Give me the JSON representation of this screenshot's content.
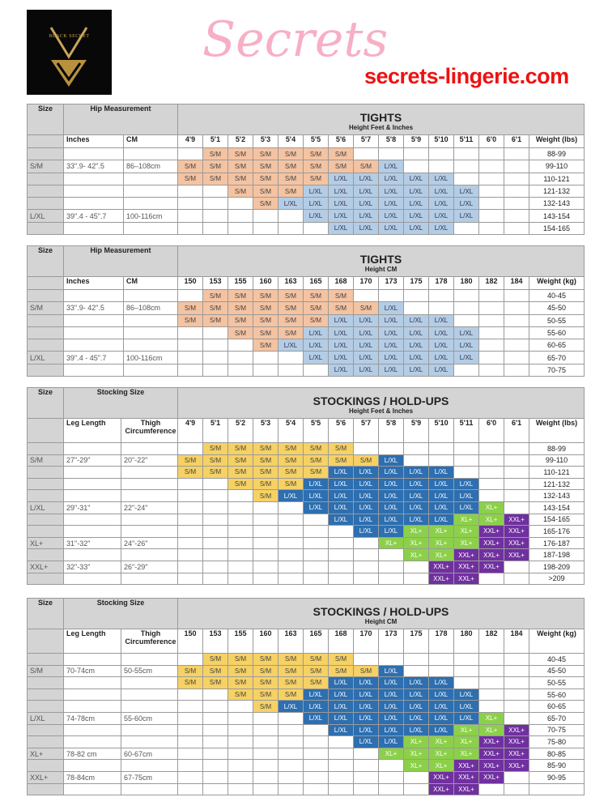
{
  "logo": {
    "text": "BLACK SECRET"
  },
  "colors": {
    "header": "#d4d4d4",
    "tights_sm": "#f4c3a2",
    "tights_lxl": "#b4cde6",
    "stock_sm": "#f6d164",
    "stock_lxl": "#2d6fb0",
    "stock_xl": "#8cd04a",
    "stock_xxl": "#7030a0"
  },
  "tables": [
    {
      "title": "TIGHTS",
      "subtitle": "Height Feet & Inches",
      "size_header": "Size",
      "group_header": "Hip Measurement",
      "col1": "Inches",
      "col2": "CM",
      "heights": [
        "4'9",
        "5'1",
        "5'2",
        "5'3",
        "5'4",
        "5'5",
        "5'6",
        "5'7",
        "5'8",
        "5'9",
        "5'10",
        "5'11",
        "6'0",
        "6'1"
      ],
      "weight_header": "Weight (lbs)",
      "palette": "tights",
      "rows": [
        {
          "size": "",
          "m1": "",
          "m2": "",
          "weight": "88-99",
          "cells": [
            "",
            "S/M",
            "S/M",
            "S/M",
            "S/M",
            "S/M",
            "S/M",
            "",
            "",
            "",
            "",
            "",
            "",
            ""
          ]
        },
        {
          "size": "S/M",
          "m1": "33\".9- 42\".5",
          "m2": "86–108cm",
          "weight": "99-110",
          "cells": [
            "S/M",
            "S/M",
            "S/M",
            "S/M",
            "S/M",
            "S/M",
            "S/M",
            "S/M",
            "L/XL",
            "",
            "",
            "",
            "",
            ""
          ]
        },
        {
          "size": "",
          "m1": "",
          "m2": "",
          "weight": "110-121",
          "cells": [
            "S/M",
            "S/M",
            "S/M",
            "S/M",
            "S/M",
            "S/M",
            "L/XL",
            "L/XL",
            "L/XL",
            "L/XL",
            "L/XL",
            "",
            "",
            ""
          ]
        },
        {
          "size": "",
          "m1": "",
          "m2": "",
          "weight": "121-132",
          "cells": [
            "",
            "",
            "S/M",
            "S/M",
            "S/M",
            "L/XL",
            "L/XL",
            "L/XL",
            "L/XL",
            "L/XL",
            "L/XL",
            "L/XL",
            "",
            ""
          ]
        },
        {
          "size": "",
          "m1": "",
          "m2": "",
          "weight": "132-143",
          "cells": [
            "",
            "",
            "",
            "S/M",
            "L/XL",
            "L/XL",
            "L/XL",
            "L/XL",
            "L/XL",
            "L/XL",
            "L/XL",
            "L/XL",
            "",
            ""
          ]
        },
        {
          "size": "L/XL",
          "m1": "39\".4 - 45\".7",
          "m2": "100-116cm",
          "weight": "143-154",
          "cells": [
            "",
            "",
            "",
            "",
            "",
            "L/XL",
            "L/XL",
            "L/XL",
            "L/XL",
            "L/XL",
            "L/XL",
            "L/XL",
            "",
            ""
          ]
        },
        {
          "size": "",
          "m1": "",
          "m2": "",
          "weight": "154-165",
          "cells": [
            "",
            "",
            "",
            "",
            "",
            "",
            "L/XL",
            "L/XL",
            "L/XL",
            "L/XL",
            "L/XL",
            "",
            "",
            ""
          ]
        }
      ]
    },
    {
      "title": "TIGHTS",
      "subtitle": "Height CM",
      "size_header": "Size",
      "group_header": "Hip Measurement",
      "col1": "Inches",
      "col2": "CM",
      "heights": [
        "150",
        "153",
        "155",
        "160",
        "163",
        "165",
        "168",
        "170",
        "173",
        "175",
        "178",
        "180",
        "182",
        "184"
      ],
      "weight_header": "Weight (kg)",
      "palette": "tights",
      "rows": [
        {
          "size": "",
          "m1": "",
          "m2": "",
          "weight": "40-45",
          "cells": [
            "",
            "S/M",
            "S/M",
            "S/M",
            "S/M",
            "S/M",
            "S/M",
            "",
            "",
            "",
            "",
            "",
            "",
            ""
          ]
        },
        {
          "size": "S/M",
          "m1": "33\".9- 42\".5",
          "m2": "86–108cm",
          "weight": "45-50",
          "cells": [
            "S/M",
            "S/M",
            "S/M",
            "S/M",
            "S/M",
            "S/M",
            "S/M",
            "S/M",
            "L/XL",
            "",
            "",
            "",
            "",
            ""
          ]
        },
        {
          "size": "",
          "m1": "",
          "m2": "",
          "weight": "50-55",
          "cells": [
            "S/M",
            "S/M",
            "S/M",
            "S/M",
            "S/M",
            "S/M",
            "L/XL",
            "L/XL",
            "L/XL",
            "L/XL",
            "L/XL",
            "",
            "",
            ""
          ]
        },
        {
          "size": "",
          "m1": "",
          "m2": "",
          "weight": "55-60",
          "cells": [
            "",
            "",
            "S/M",
            "S/M",
            "S/M",
            "L/XL",
            "L/XL",
            "L/XL",
            "L/XL",
            "L/XL",
            "L/XL",
            "L/XL",
            "",
            ""
          ]
        },
        {
          "size": "",
          "m1": "",
          "m2": "",
          "weight": "60-65",
          "cells": [
            "",
            "",
            "",
            "S/M",
            "L/XL",
            "L/XL",
            "L/XL",
            "L/XL",
            "L/XL",
            "L/XL",
            "L/XL",
            "L/XL",
            "",
            ""
          ]
        },
        {
          "size": "L/XL",
          "m1": "39\".4 - 45\".7",
          "m2": "100-116cm",
          "weight": "65-70",
          "cells": [
            "",
            "",
            "",
            "",
            "",
            "L/XL",
            "L/XL",
            "L/XL",
            "L/XL",
            "L/XL",
            "L/XL",
            "L/XL",
            "",
            ""
          ]
        },
        {
          "size": "",
          "m1": "",
          "m2": "",
          "weight": "70-75",
          "cells": [
            "",
            "",
            "",
            "",
            "",
            "",
            "L/XL",
            "L/XL",
            "L/XL",
            "L/XL",
            "L/XL",
            "",
            "",
            ""
          ]
        }
      ]
    },
    {
      "title": "STOCKINGS / HOLD-UPS",
      "subtitle": "Height Feet & Inches",
      "size_header": "Size",
      "group_header": "Stocking Size",
      "col1": "Leg Length",
      "col2": "Thigh Circumference",
      "heights": [
        "4'9",
        "5'1",
        "5'2",
        "5'3",
        "5'4",
        "5'5",
        "5'6",
        "5'7",
        "5'8",
        "5'9",
        "5'10",
        "5'11",
        "6'0",
        "6'1"
      ],
      "weight_header": "Weight (lbs)",
      "palette": "stock",
      "rows": [
        {
          "size": "",
          "m1": "",
          "m2": "",
          "weight": "88-99",
          "cells": [
            "",
            "S/M",
            "S/M",
            "S/M",
            "S/M",
            "S/M",
            "S/M",
            "",
            "",
            "",
            "",
            "",
            "",
            ""
          ]
        },
        {
          "size": "S/M",
          "m1": "27\"-29\"",
          "m2": "20\"-22\"",
          "weight": "99-110",
          "cells": [
            "S/M",
            "S/M",
            "S/M",
            "S/M",
            "S/M",
            "S/M",
            "S/M",
            "S/M",
            "L/XL",
            "",
            "",
            "",
            "",
            ""
          ]
        },
        {
          "size": "",
          "m1": "",
          "m2": "",
          "weight": "110-121",
          "cells": [
            "S/M",
            "S/M",
            "S/M",
            "S/M",
            "S/M",
            "S/M",
            "L/XL",
            "L/XL",
            "L/XL",
            "L/XL",
            "L/XL",
            "",
            "",
            ""
          ]
        },
        {
          "size": "",
          "m1": "",
          "m2": "",
          "weight": "121-132",
          "cells": [
            "",
            "",
            "S/M",
            "S/M",
            "S/M",
            "L/XL",
            "L/XL",
            "L/XL",
            "L/XL",
            "L/XL",
            "L/XL",
            "L/XL",
            "",
            ""
          ]
        },
        {
          "size": "",
          "m1": "",
          "m2": "",
          "weight": "132-143",
          "cells": [
            "",
            "",
            "",
            "S/M",
            "L/XL",
            "L/XL",
            "L/XL",
            "L/XL",
            "L/XL",
            "L/XL",
            "L/XL",
            "L/XL",
            "",
            ""
          ]
        },
        {
          "size": "L/XL",
          "m1": "29\"-31\"",
          "m2": "22\"-24\"",
          "weight": "143-154",
          "cells": [
            "",
            "",
            "",
            "",
            "",
            "L/XL",
            "L/XL",
            "L/XL",
            "L/XL",
            "L/XL",
            "L/XL",
            "L/XL",
            "XL+",
            ""
          ]
        },
        {
          "size": "",
          "m1": "",
          "m2": "",
          "weight": "154-165",
          "cells": [
            "",
            "",
            "",
            "",
            "",
            "",
            "L/XL",
            "L/XL",
            "L/XL",
            "L/XL",
            "L/XL",
            "XL+",
            "XL+",
            "XXL+"
          ]
        },
        {
          "size": "",
          "m1": "",
          "m2": "",
          "weight": "165-176",
          "cells": [
            "",
            "",
            "",
            "",
            "",
            "",
            "",
            "L/XL",
            "L/XL",
            "XL+",
            "XL+",
            "XL+",
            "XXL+",
            "XXL+"
          ]
        },
        {
          "size": "XL+",
          "m1": "31\"-32\"",
          "m2": "24\"-26\"",
          "weight": "176-187",
          "cells": [
            "",
            "",
            "",
            "",
            "",
            "",
            "",
            "",
            "XL+",
            "XL+",
            "XL+",
            "XL+",
            "XXL+",
            "XXL+"
          ]
        },
        {
          "size": "",
          "m1": "",
          "m2": "",
          "weight": "187-198",
          "cells": [
            "",
            "",
            "",
            "",
            "",
            "",
            "",
            "",
            "",
            "XL+",
            "XL+",
            "XXL+",
            "XXL+",
            "XXL+"
          ]
        },
        {
          "size": "XXL+",
          "m1": "32\"-33\"",
          "m2": "26\"-29\"",
          "weight": "198-209",
          "cells": [
            "",
            "",
            "",
            "",
            "",
            "",
            "",
            "",
            "",
            "",
            "XXL+",
            "XXL+",
            "XXL+",
            ""
          ]
        },
        {
          "size": "",
          "m1": "",
          "m2": "",
          "weight": ">209",
          "cells": [
            "",
            "",
            "",
            "",
            "",
            "",
            "",
            "",
            "",
            "",
            "XXL+",
            "XXL+",
            "",
            ""
          ]
        }
      ]
    },
    {
      "title": "STOCKINGS / HOLD-UPS",
      "subtitle": "Height CM",
      "size_header": "Size",
      "group_header": "Stocking Size",
      "col1": "Leg Length",
      "col2": "Thigh Circumference",
      "heights": [
        "150",
        "153",
        "155",
        "160",
        "163",
        "165",
        "168",
        "170",
        "173",
        "175",
        "178",
        "180",
        "182",
        "184"
      ],
      "weight_header": "Weight (kg)",
      "palette": "stock",
      "rows": [
        {
          "size": "",
          "m1": "",
          "m2": "",
          "weight": "40-45",
          "cells": [
            "",
            "S/M",
            "S/M",
            "S/M",
            "S/M",
            "S/M",
            "S/M",
            "",
            "",
            "",
            "",
            "",
            "",
            ""
          ]
        },
        {
          "size": "S/M",
          "m1": "70-74cm",
          "m2": "50-55cm",
          "weight": "45-50",
          "cells": [
            "S/M",
            "S/M",
            "S/M",
            "S/M",
            "S/M",
            "S/M",
            "S/M",
            "S/M",
            "L/XL",
            "",
            "",
            "",
            "",
            ""
          ]
        },
        {
          "size": "",
          "m1": "",
          "m2": "",
          "weight": "50-55",
          "cells": [
            "S/M",
            "S/M",
            "S/M",
            "S/M",
            "S/M",
            "S/M",
            "L/XL",
            "L/XL",
            "L/XL",
            "L/XL",
            "L/XL",
            "",
            "",
            ""
          ]
        },
        {
          "size": "",
          "m1": "",
          "m2": "",
          "weight": "55-60",
          "cells": [
            "",
            "",
            "S/M",
            "S/M",
            "S/M",
            "L/XL",
            "L/XL",
            "L/XL",
            "L/XL",
            "L/XL",
            "L/XL",
            "L/XL",
            "",
            ""
          ]
        },
        {
          "size": "",
          "m1": "",
          "m2": "",
          "weight": "60-65",
          "cells": [
            "",
            "",
            "",
            "S/M",
            "L/XL",
            "L/XL",
            "L/XL",
            "L/XL",
            "L/XL",
            "L/XL",
            "L/XL",
            "L/XL",
            "",
            ""
          ]
        },
        {
          "size": "L/XL",
          "m1": "74-78cm",
          "m2": "55-60cm",
          "weight": "65-70",
          "cells": [
            "",
            "",
            "",
            "",
            "",
            "L/XL",
            "L/XL",
            "L/XL",
            "L/XL",
            "L/XL",
            "L/XL",
            "L/XL",
            "XL+",
            ""
          ]
        },
        {
          "size": "",
          "m1": "",
          "m2": "",
          "weight": "70-75",
          "cells": [
            "",
            "",
            "",
            "",
            "",
            "",
            "L/XL",
            "L/XL",
            "L/XL",
            "L/XL",
            "L/XL",
            "XL+",
            "XL+",
            "XXL+"
          ]
        },
        {
          "size": "",
          "m1": "",
          "m2": "",
          "weight": "75-80",
          "cells": [
            "",
            "",
            "",
            "",
            "",
            "",
            "",
            "L/XL",
            "L/XL",
            "XL+",
            "XL+",
            "XL+",
            "XXL+",
            "XXL+"
          ]
        },
        {
          "size": "XL+",
          "m1": "78-82 cm",
          "m2": "60-67cm",
          "weight": "80-85",
          "cells": [
            "",
            "",
            "",
            "",
            "",
            "",
            "",
            "",
            "XL+",
            "XL+",
            "XL+",
            "XL+",
            "XXL+",
            "XXL+"
          ]
        },
        {
          "size": "",
          "m1": "",
          "m2": "",
          "weight": "85-90",
          "cells": [
            "",
            "",
            "",
            "",
            "",
            "",
            "",
            "",
            "",
            "XL+",
            "XL+",
            "XXL+",
            "XXL+",
            "XXL+"
          ]
        },
        {
          "size": "XXL+",
          "m1": "78-84cm",
          "m2": "67-75cm",
          "weight": "90-95",
          "cells": [
            "",
            "",
            "",
            "",
            "",
            "",
            "",
            "",
            "",
            "",
            "XXL+",
            "XXL+",
            "XXL+",
            ""
          ]
        },
        {
          "size": "",
          "m1": "",
          "m2": "",
          "weight": "",
          "cells": [
            "",
            "",
            "",
            "",
            "",
            "",
            "",
            "",
            "",
            "",
            "XXL+",
            "XXL+",
            "",
            ""
          ]
        }
      ]
    }
  ],
  "watermark": {
    "script": "Secrets",
    "url": "secrets-lingerie.com"
  }
}
